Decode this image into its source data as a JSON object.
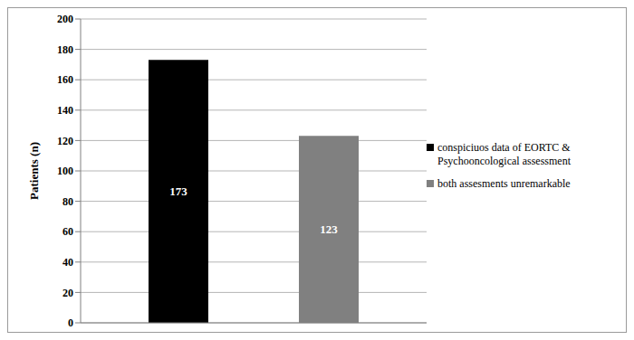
{
  "chart_data": {
    "type": "bar",
    "categories": [
      null
    ],
    "series": [
      {
        "name": "conspiciuos data of EORTC & Psychooncological assessment",
        "color": "#000000",
        "values": [
          173
        ]
      },
      {
        "name": "both assesments unremarkable",
        "color": "#808080",
        "values": [
          123
        ]
      }
    ],
    "y_label": "Patients (n)",
    "ylim": [
      0,
      200
    ],
    "yticks": [
      0,
      20,
      40,
      60,
      80,
      100,
      120,
      140,
      160,
      180,
      200
    ],
    "grid": true,
    "legend": "right",
    "data_labels": true,
    "tick_labels": "y"
  }
}
